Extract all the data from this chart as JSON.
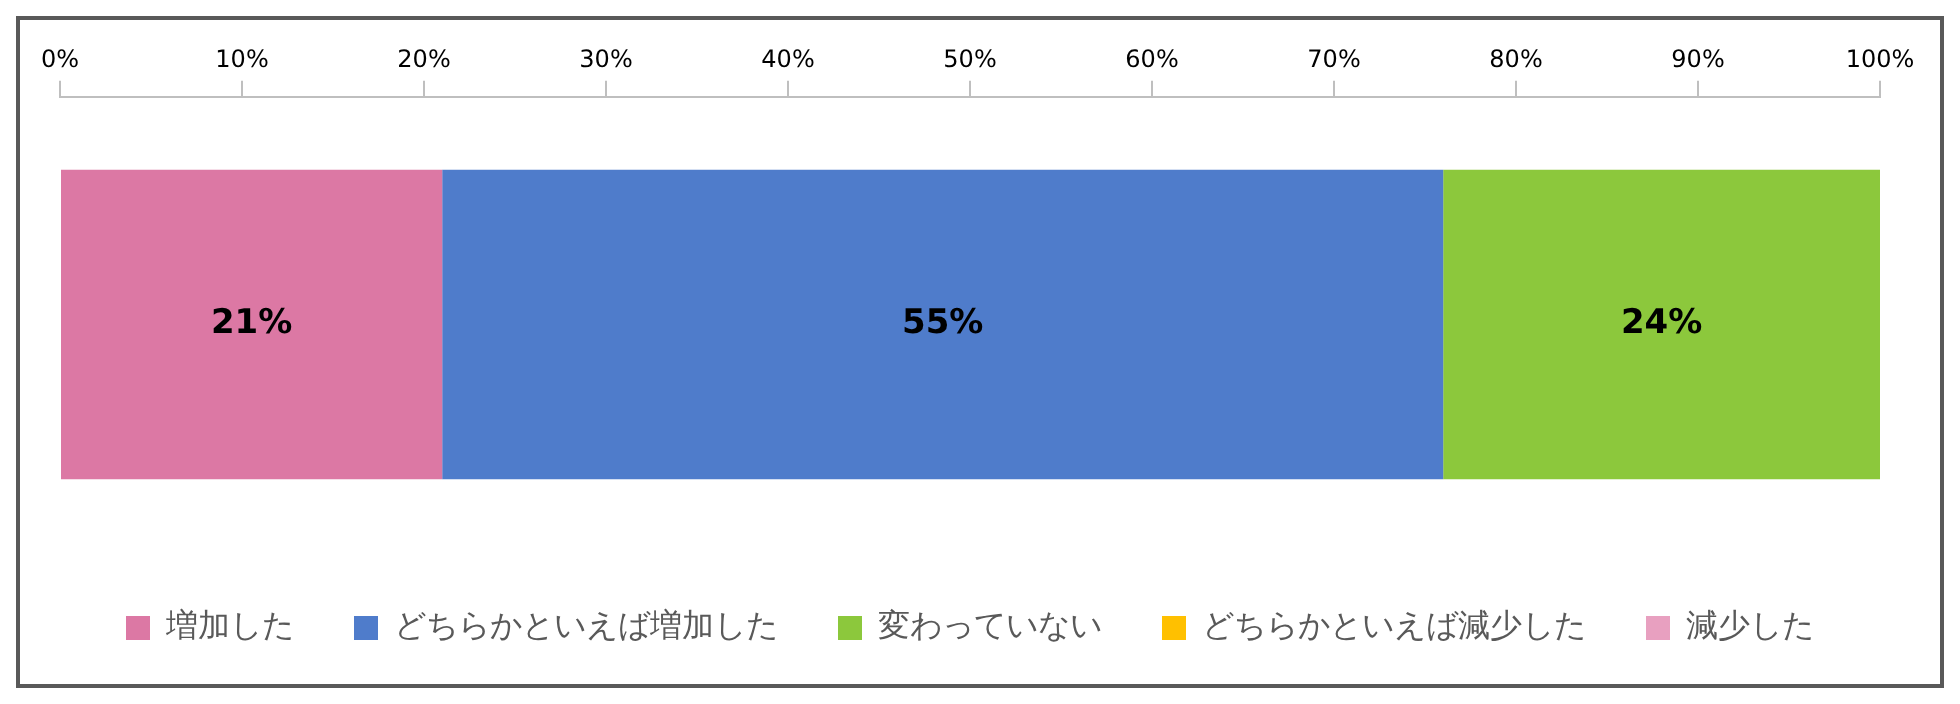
{
  "chart_data": {
    "type": "bar",
    "orientation": "horizontal",
    "stacked": true,
    "categories": [
      null
    ],
    "series": [
      {
        "name": "増加した",
        "color": "#dc78a4",
        "values": [
          21
        ],
        "value_labels": [
          "21%"
        ]
      },
      {
        "name": "どちらかといえば増加した",
        "color": "#4f7ccb",
        "values": [
          55
        ],
        "value_labels": [
          "55%"
        ]
      },
      {
        "name": "変わっていない",
        "color": "#8cc83c",
        "values": [
          24
        ],
        "value_labels": [
          "24%"
        ]
      },
      {
        "name": "どちらかといえば減少した",
        "color": "#ffc000",
        "values": [
          0
        ],
        "value_labels": [
          null
        ]
      },
      {
        "name": "減少した",
        "color": "#e8a0c0",
        "values": [
          0
        ],
        "value_labels": [
          null
        ]
      }
    ],
    "xlim": [
      0,
      100
    ],
    "xticks": [
      {
        "value": 0,
        "label": "0%"
      },
      {
        "value": 10,
        "label": "10%"
      },
      {
        "value": 20,
        "label": "20%"
      },
      {
        "value": 30,
        "label": "30%"
      },
      {
        "value": 40,
        "label": "40%"
      },
      {
        "value": 50,
        "label": "50%"
      },
      {
        "value": 60,
        "label": "60%"
      },
      {
        "value": 70,
        "label": "70%"
      },
      {
        "value": 80,
        "label": "80%"
      },
      {
        "value": 90,
        "label": "90%"
      },
      {
        "value": 100,
        "label": "100%"
      }
    ],
    "legend": "bottom"
  }
}
